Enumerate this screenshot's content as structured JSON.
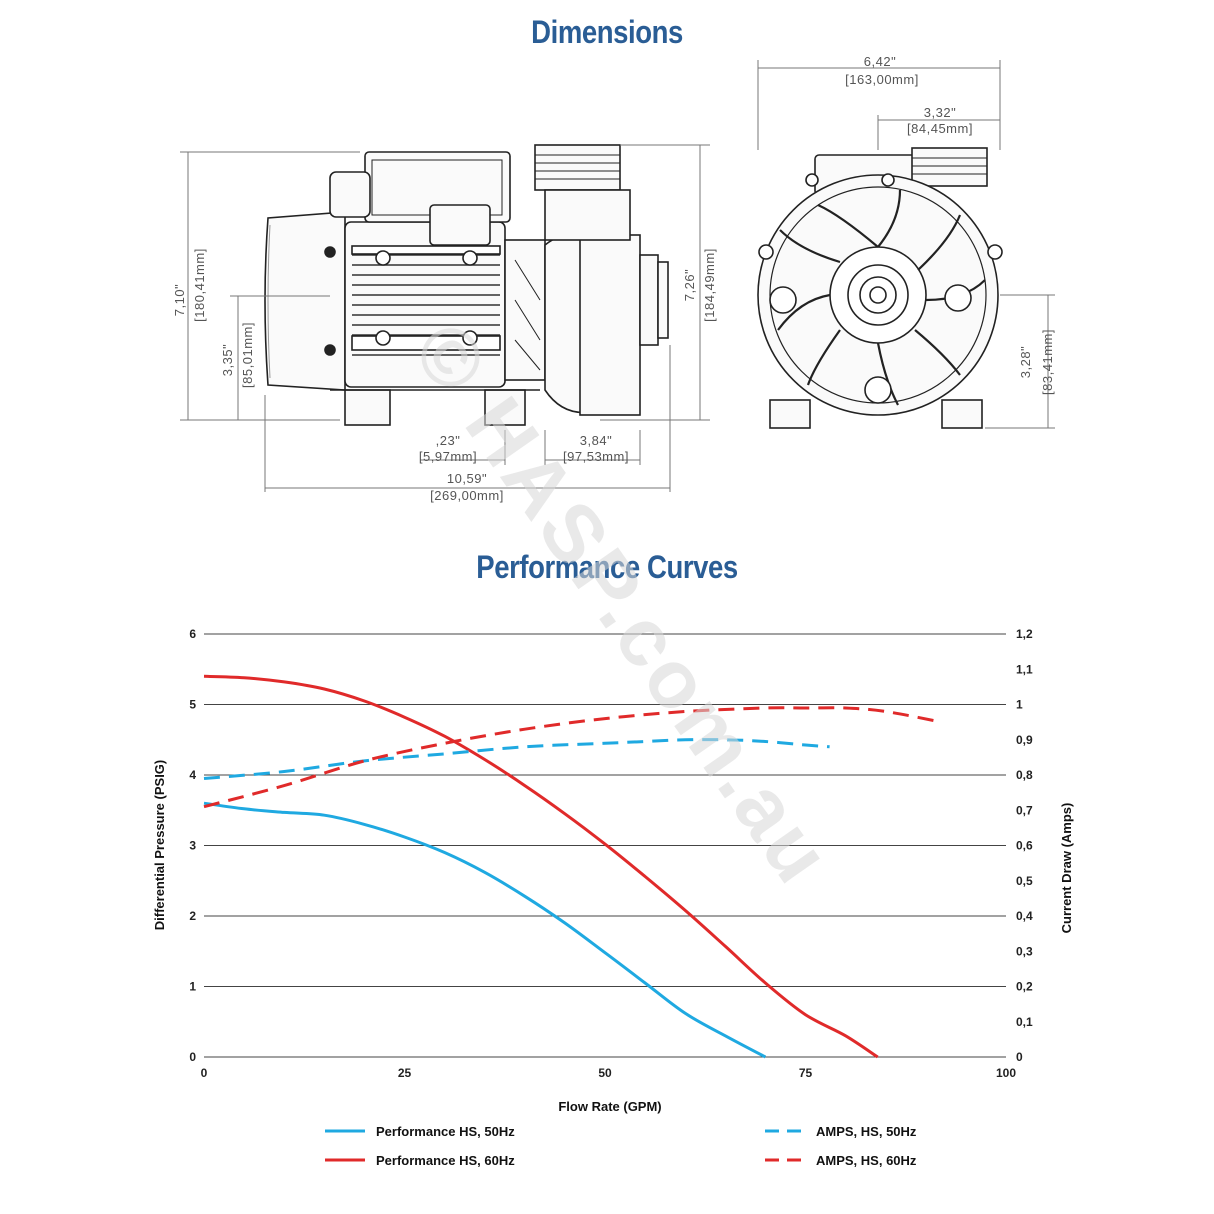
{
  "titles": {
    "dimensions": "Dimensions",
    "performance": "Performance Curves"
  },
  "watermark": "© HASP.com.au",
  "dimensions": {
    "side": {
      "height_total": "7,10\"",
      "height_total_mm": "[180,41mm]",
      "height_axis": "3,35\"",
      "height_axis_mm": "[85,01mm]",
      "height_outlet": "7,26\"",
      "height_outlet_mm": "[184,49mm]",
      "foot_offset": ",23\"",
      "foot_offset_mm": "[5,97mm]",
      "wet_end": "3,84\"",
      "wet_end_mm": "[97,53mm]",
      "length": "10,59\"",
      "length_mm": "[269,00mm]"
    },
    "front": {
      "width": "6,42\"",
      "width_mm": "[163,00mm]",
      "half_width": "3,32\"",
      "half_width_mm": "[84,45mm]",
      "axis_height": "3,28\"",
      "axis_height_mm": "[83,41mm]"
    }
  },
  "chart_data": {
    "type": "line",
    "title": "Performance Curves",
    "xlabel": "Flow Rate (GPM)",
    "ylabel": "Differential Pressure (PSIG)",
    "y2label": "Current Draw (Amps)",
    "xlim": [
      0,
      100
    ],
    "ylim": [
      0,
      6
    ],
    "y2lim": [
      0,
      1.2
    ],
    "x_ticks": [
      "0",
      "25",
      "50",
      "75",
      "100"
    ],
    "y_ticks": [
      "0",
      "1",
      "2",
      "3",
      "4",
      "5",
      "6"
    ],
    "y2_ticks": [
      "0",
      "0,1",
      "0,2",
      "0,3",
      "0,4",
      "0,5",
      "0,6",
      "0,7",
      "0,8",
      "0,9",
      "1",
      "1,1",
      "1,2"
    ],
    "grid": true,
    "legend_position": "bottom",
    "series": [
      {
        "name": "Performance HS, 50Hz",
        "axis": "left",
        "color": "#1fa9e1",
        "style": "solid",
        "points": [
          [
            0,
            3.6
          ],
          [
            5,
            3.52
          ],
          [
            10,
            3.47
          ],
          [
            15,
            3.43
          ],
          [
            20,
            3.3
          ],
          [
            25,
            3.12
          ],
          [
            30,
            2.9
          ],
          [
            35,
            2.62
          ],
          [
            40,
            2.28
          ],
          [
            45,
            1.9
          ],
          [
            50,
            1.48
          ],
          [
            55,
            1.05
          ],
          [
            60,
            0.62
          ],
          [
            65,
            0.3
          ],
          [
            70,
            0.0
          ]
        ]
      },
      {
        "name": "Performance HS, 60Hz",
        "axis": "left",
        "color": "#e02a2a",
        "style": "solid",
        "points": [
          [
            0,
            5.4
          ],
          [
            5,
            5.38
          ],
          [
            10,
            5.32
          ],
          [
            15,
            5.22
          ],
          [
            20,
            5.05
          ],
          [
            25,
            4.82
          ],
          [
            30,
            4.55
          ],
          [
            35,
            4.22
          ],
          [
            40,
            3.85
          ],
          [
            45,
            3.45
          ],
          [
            50,
            3.02
          ],
          [
            55,
            2.56
          ],
          [
            60,
            2.08
          ],
          [
            65,
            1.57
          ],
          [
            70,
            1.05
          ],
          [
            75,
            0.6
          ],
          [
            80,
            0.3
          ],
          [
            84,
            0.0
          ]
        ]
      },
      {
        "name": "AMPS, HS, 50Hz",
        "axis": "right",
        "color": "#1fa9e1",
        "style": "dashed",
        "points": [
          [
            0,
            0.79
          ],
          [
            10,
            0.81
          ],
          [
            20,
            0.84
          ],
          [
            30,
            0.86
          ],
          [
            40,
            0.88
          ],
          [
            50,
            0.89
          ],
          [
            55,
            0.895
          ],
          [
            60,
            0.9
          ],
          [
            65,
            0.9
          ],
          [
            70,
            0.895
          ],
          [
            75,
            0.885
          ],
          [
            78,
            0.88
          ]
        ]
      },
      {
        "name": "AMPS, HS, 60Hz",
        "axis": "right",
        "color": "#e02a2a",
        "style": "dashed",
        "points": [
          [
            0,
            0.71
          ],
          [
            10,
            0.77
          ],
          [
            20,
            0.84
          ],
          [
            30,
            0.89
          ],
          [
            40,
            0.93
          ],
          [
            50,
            0.96
          ],
          [
            60,
            0.98
          ],
          [
            70,
            0.99
          ],
          [
            75,
            0.99
          ],
          [
            80,
            0.99
          ],
          [
            85,
            0.98
          ],
          [
            92,
            0.95
          ]
        ]
      }
    ]
  }
}
